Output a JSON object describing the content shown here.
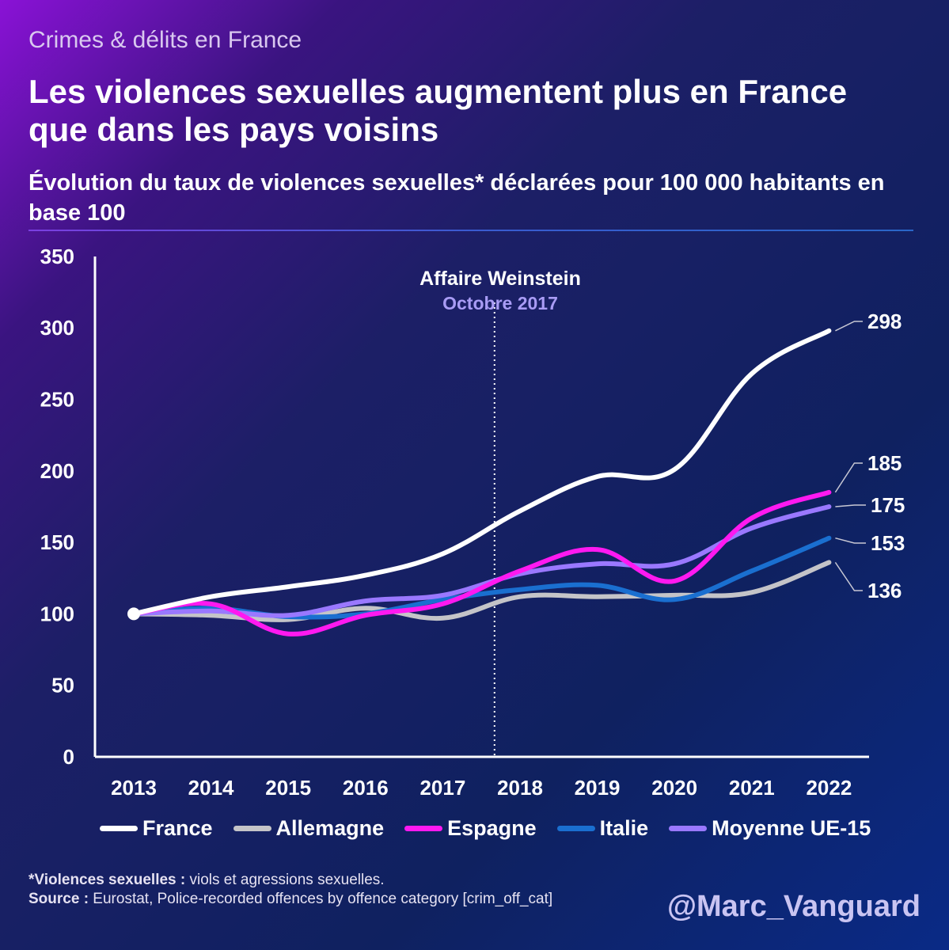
{
  "header": {
    "kicker": "Crimes & délits en France",
    "title": "Les violences sexuelles augmentent plus en France que dans les pays voisins",
    "subtitle": "Évolution du taux de violences sexuelles* déclarées pour 100 000 habitants en base 100"
  },
  "chart_data": {
    "type": "line",
    "title": "Les violences sexuelles augmentent plus en France que dans les pays voisins",
    "subtitle": "Évolution du taux de violences sexuelles* déclarées pour 100 000 habitants en base 100",
    "x": [
      "2013",
      "2014",
      "2015",
      "2016",
      "2017",
      "2018",
      "2019",
      "2020",
      "2021",
      "2022"
    ],
    "ylim": [
      0,
      350
    ],
    "yticks": [
      0,
      50,
      100,
      150,
      200,
      250,
      300,
      350
    ],
    "grid": false,
    "legend_position": "bottom",
    "series": [
      {
        "name": "France",
        "color": "#ffffff",
        "values": [
          100,
          112,
          119,
          127,
          142,
          172,
          196,
          201,
          268,
          298
        ]
      },
      {
        "name": "Allemagne",
        "color": "#c4c4c8",
        "values": [
          100,
          99,
          96,
          104,
          97,
          112,
          112,
          113,
          115,
          136
        ]
      },
      {
        "name": "Espagne",
        "color": "#ff19f0",
        "values": [
          100,
          107,
          86,
          99,
          107,
          130,
          145,
          123,
          167,
          185
        ]
      },
      {
        "name": "Italie",
        "color": "#1a6fd0",
        "values": [
          100,
          104,
          98,
          100,
          110,
          117,
          120,
          110,
          130,
          153
        ]
      },
      {
        "name": "Moyenne UE-15",
        "color": "#9a78ff",
        "values": [
          100,
          102,
          99,
          109,
          113,
          128,
          135,
          135,
          160,
          175
        ]
      }
    ],
    "end_labels": [
      "298",
      "185",
      "175",
      "153",
      "136"
    ],
    "annotation": {
      "title": "Affaire Weinstein",
      "subtitle": "Octobre 2017",
      "x_position": 2017.67
    }
  },
  "footnote": {
    "def_label": "*Violences sexuelles :",
    "def_text": " viols et agressions sexuelles.",
    "source_label": "Source :",
    "source_text": " Eurostat, Police-recorded offences by offence category [crim_off_cat]"
  },
  "handle": "@Marc_Vanguard"
}
